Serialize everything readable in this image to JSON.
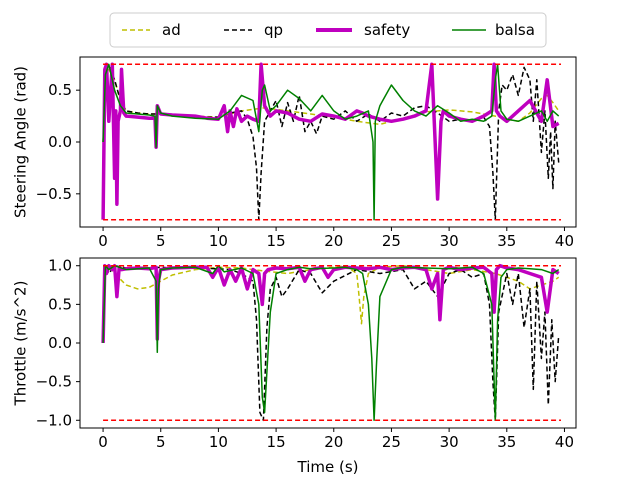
{
  "legend": {
    "placement": "top-center",
    "entries": [
      {
        "label": "ad",
        "color": "#bfbf00",
        "style": "dashed"
      },
      {
        "label": "qp",
        "color": "#000000",
        "style": "dashed"
      },
      {
        "label": "safety",
        "color": "#bf00bf",
        "style": "solid-thick"
      },
      {
        "label": "balsa",
        "color": "#008000",
        "style": "solid"
      }
    ]
  },
  "chart_data": [
    {
      "type": "line",
      "title": "",
      "xlabel": "",
      "ylabel": "Steering Angle (rad)",
      "xlim": [
        -2.0,
        41.0
      ],
      "ylim": [
        -0.82,
        0.82
      ],
      "xticks": [
        0,
        5,
        10,
        15,
        20,
        25,
        30,
        35,
        40
      ],
      "yticks": [
        -0.5,
        0.0,
        0.5
      ],
      "grid": false,
      "bounds": {
        "upper": 0.75,
        "lower": -0.75,
        "color": "#ff0000",
        "style": "dashed"
      },
      "series": [
        {
          "name": "ad",
          "color": "#bfbf00",
          "style": "dashed",
          "x": [
            0,
            0.3,
            0.5,
            1,
            1.5,
            2,
            3,
            4,
            5,
            6,
            8,
            10,
            12,
            14,
            16,
            18,
            20,
            22,
            24,
            26,
            28,
            30,
            32,
            34,
            35,
            36,
            37,
            38,
            38.5,
            39,
            39.5
          ],
          "y": [
            0,
            0.6,
            0.7,
            0.6,
            0.4,
            0.3,
            0.28,
            0.27,
            0.27,
            0.26,
            0.25,
            0.24,
            0.3,
            0.33,
            0.3,
            0.27,
            0.24,
            0.2,
            0.17,
            0.23,
            0.29,
            0.31,
            0.29,
            0.25,
            0.22,
            0.2,
            0.28,
            0.42,
            0.45,
            0.38,
            0.3
          ]
        },
        {
          "name": "qp",
          "color": "#000000",
          "style": "dashed",
          "x": [
            0,
            0.2,
            0.5,
            1,
            1.5,
            2,
            3,
            4,
            5,
            7,
            9,
            10,
            11,
            12,
            12.5,
            13,
            13.3,
            13.5,
            13.7,
            14,
            14.5,
            15,
            15.5,
            16,
            16.5,
            17,
            17.5,
            18,
            18.5,
            19,
            20,
            21,
            22,
            23,
            24,
            25,
            26,
            27,
            28,
            29,
            30,
            31,
            32,
            33,
            33.5,
            33.8,
            34,
            34.3,
            34.6,
            35,
            35.5,
            36,
            36.5,
            37,
            37.3,
            37.6,
            38,
            38.3,
            38.6,
            38.8,
            39,
            39.2,
            39.5
          ],
          "y": [
            0,
            0.7,
            0.74,
            0.6,
            0.4,
            0.3,
            0.28,
            0.27,
            0.27,
            0.25,
            0.24,
            0.24,
            0.28,
            0.3,
            0.22,
            0.05,
            -0.25,
            -0.75,
            -0.3,
            0.2,
            0.3,
            0.4,
            0.15,
            0.38,
            0.2,
            0.45,
            0.1,
            0.2,
            0.08,
            0.25,
            0.22,
            0.3,
            0.2,
            0.27,
            0.2,
            0.28,
            0.25,
            0.33,
            0.35,
            0.28,
            0.2,
            0.22,
            0.2,
            0.24,
            0.15,
            -0.3,
            -0.75,
            0.3,
            0.55,
            0.5,
            0.65,
            0.45,
            0.72,
            0.6,
            0.2,
            0.6,
            -0.1,
            0.3,
            -0.35,
            0.1,
            -0.45,
            0.2,
            -0.2
          ]
        },
        {
          "name": "safety",
          "color": "#bf00bf",
          "style": "solid-thick",
          "x": [
            0,
            0.15,
            0.3,
            0.5,
            0.8,
            1.0,
            1.1,
            1.2,
            1.3,
            1.5,
            1.6,
            1.8,
            2,
            3,
            4,
            4.5,
            4.6,
            4.7,
            5,
            6,
            8,
            9,
            10,
            10.5,
            10.8,
            11,
            11.3,
            11.6,
            12,
            12.5,
            13,
            13.5,
            13.7,
            14,
            14.5,
            15,
            16,
            17,
            18,
            19,
            20,
            21,
            22,
            22.5,
            23,
            24,
            25,
            26,
            27,
            28,
            28.5,
            29,
            29.3,
            29.5,
            30,
            31,
            32,
            33,
            33.7,
            33.9,
            34.1,
            34.4,
            35,
            36,
            37,
            38,
            38.5,
            39,
            39.5
          ],
          "y": [
            -0.75,
            0.7,
            0.75,
            0.2,
            0.75,
            -0.35,
            0.3,
            -0.6,
            0.2,
            0.3,
            0.7,
            0.28,
            0.25,
            0.24,
            0.23,
            0.23,
            -0.05,
            0.35,
            0.27,
            0.26,
            0.25,
            0.23,
            0.22,
            0.35,
            0.1,
            0.3,
            0.15,
            0.32,
            0.2,
            0.25,
            0.22,
            0.2,
            0.75,
            0.35,
            0.25,
            0.3,
            0.28,
            0.22,
            0.2,
            0.27,
            0.25,
            0.22,
            0.3,
            0.28,
            0.25,
            0.22,
            0.2,
            0.22,
            0.25,
            0.3,
            0.75,
            -0.55,
            0.2,
            0.3,
            0.25,
            0.22,
            0.2,
            0.25,
            0.3,
            0.75,
            0.3,
            0.25,
            0.2,
            0.3,
            0.4,
            0.2,
            0.6,
            0.15,
            0.18
          ]
        },
        {
          "name": "balsa",
          "color": "#008000",
          "style": "solid",
          "x": [
            0,
            0.2,
            0.5,
            1,
            1.5,
            2,
            3,
            4,
            4.5,
            4.6,
            4.7,
            5,
            6,
            8,
            10,
            11,
            12,
            13,
            13.5,
            13.8,
            14,
            14.5,
            15,
            16,
            17,
            18,
            19,
            20,
            21,
            22,
            23,
            23.4,
            23.5,
            23.6,
            24,
            25,
            26,
            27,
            28,
            29,
            30,
            31,
            32,
            33,
            33.7,
            34,
            34.2,
            34.5,
            35,
            36,
            37,
            38,
            38.5,
            39,
            39.5
          ],
          "y": [
            0,
            0.65,
            0.75,
            0.5,
            0.35,
            0.28,
            0.27,
            0.26,
            0.25,
            -0.05,
            0.35,
            0.28,
            0.25,
            0.23,
            0.22,
            0.3,
            0.45,
            0.4,
            0.1,
            0.5,
            0.55,
            0.3,
            0.35,
            0.5,
            0.42,
            0.3,
            0.45,
            0.3,
            0.22,
            0.25,
            0.3,
            0.0,
            -0.75,
            0.2,
            0.35,
            0.55,
            0.4,
            0.3,
            0.25,
            0.35,
            0.28,
            0.2,
            0.22,
            0.2,
            0.25,
            0.6,
            0.75,
            0.3,
            0.22,
            0.2,
            0.25,
            0.3,
            0.2,
            0.3,
            0.25
          ]
        }
      ]
    },
    {
      "type": "line",
      "title": "",
      "xlabel": "Time (s)",
      "ylabel": "Throttle (m/s^2)",
      "xlim": [
        -2.0,
        41.0
      ],
      "ylim": [
        -1.1,
        1.1
      ],
      "xticks": [
        0,
        5,
        10,
        15,
        20,
        25,
        30,
        35,
        40
      ],
      "yticks": [
        -1.0,
        -0.5,
        0.0,
        0.5,
        1.0
      ],
      "grid": false,
      "bounds": {
        "upper": 1.0,
        "lower": -1.0,
        "color": "#ff0000",
        "style": "dashed"
      },
      "series": [
        {
          "name": "ad",
          "color": "#bfbf00",
          "style": "dashed",
          "x": [
            0,
            0.2,
            0.5,
            1,
            2,
            3,
            4,
            5,
            6,
            8,
            10,
            12,
            14,
            16,
            18,
            20,
            21,
            22,
            22.2,
            22.4,
            22.6,
            23,
            24,
            26,
            28,
            30,
            32,
            34,
            36,
            37,
            38,
            39,
            39.5
          ],
          "y": [
            0,
            0.9,
            1.0,
            0.9,
            0.75,
            0.7,
            0.72,
            0.8,
            0.88,
            0.95,
            0.98,
            0.97,
            0.93,
            0.9,
            0.95,
            0.98,
            1.0,
            0.9,
            0.6,
            0.25,
            0.6,
            0.9,
            0.98,
            1.0,
            0.95,
            0.9,
            0.95,
            0.9,
            0.8,
            0.7,
            0.75,
            0.8,
            0.85
          ]
        },
        {
          "name": "qp",
          "color": "#000000",
          "style": "dashed",
          "x": [
            0,
            0.2,
            0.5,
            1,
            2,
            3,
            4,
            5,
            6,
            8,
            10,
            11,
            12,
            13,
            13.3,
            13.6,
            13.9,
            14.2,
            14.5,
            15,
            15.5,
            16,
            17,
            18,
            19,
            20,
            22,
            24,
            26,
            27,
            28,
            29,
            30,
            31,
            32,
            33,
            33.5,
            33.8,
            34,
            34.3,
            35,
            35.5,
            36,
            36.5,
            37,
            37.3,
            37.6,
            38,
            38.3,
            38.6,
            38.9,
            39.2,
            39.5
          ],
          "y": [
            0,
            1.0,
            0.9,
            1.0,
            0.97,
            0.96,
            0.97,
            0.98,
            0.97,
            0.97,
            0.96,
            0.95,
            0.9,
            0.8,
            0.3,
            -0.9,
            -1.0,
            0.2,
            0.7,
            0.85,
            0.6,
            0.7,
            0.95,
            0.9,
            0.65,
            0.8,
            0.95,
            0.9,
            0.95,
            0.7,
            0.8,
            0.6,
            0.9,
            0.95,
            0.85,
            0.9,
            0.5,
            -0.5,
            -1.0,
            0.4,
            0.9,
            0.5,
            0.9,
            0.2,
            0.7,
            -0.6,
            0.8,
            -0.2,
            0.4,
            -0.8,
            0.3,
            -0.5,
            0.1
          ]
        },
        {
          "name": "safety",
          "color": "#bf00bf",
          "style": "solid-thick",
          "x": [
            0,
            0.15,
            0.3,
            0.5,
            0.8,
            1,
            1.2,
            1.4,
            1.6,
            2,
            3,
            4,
            4.6,
            4.7,
            4.8,
            5,
            6,
            8,
            9,
            9.5,
            10,
            10.5,
            11,
            11.5,
            12,
            12.5,
            13,
            13.5,
            13.8,
            14,
            14.3,
            15,
            16,
            17,
            17.5,
            18,
            19,
            19.5,
            20,
            21,
            22,
            23,
            24,
            25,
            26,
            27,
            28,
            28.5,
            29,
            29.2,
            29.5,
            30,
            31,
            32,
            33,
            33.7,
            33.9,
            34.1,
            34.4,
            35,
            36,
            37,
            38,
            38.5,
            39,
            39.5
          ],
          "y": [
            0,
            1.0,
            0.9,
            1.0,
            0.95,
            1.0,
            0.6,
            0.98,
            0.95,
            0.96,
            0.97,
            0.96,
            0.98,
            0.05,
            0.8,
            0.95,
            0.97,
            0.98,
            0.98,
            0.85,
            0.98,
            0.75,
            0.95,
            0.8,
            0.97,
            0.7,
            0.95,
            0.9,
            0.5,
            0.9,
            0.95,
            0.97,
            0.96,
            0.98,
            0.8,
            0.95,
            0.98,
            0.85,
            0.95,
            0.98,
            0.97,
            0.96,
            0.98,
            0.95,
            0.97,
            0.98,
            0.95,
            0.7,
            0.9,
            0.3,
            0.95,
            0.98,
            0.95,
            0.97,
            0.98,
            0.9,
            0.4,
            0.95,
            1.0,
            0.97,
            0.95,
            0.9,
            0.85,
            0.4,
            0.95,
            0.9
          ]
        },
        {
          "name": "balsa",
          "color": "#008000",
          "style": "solid",
          "x": [
            0,
            0.2,
            0.5,
            1,
            2,
            3,
            4,
            4.6,
            4.7,
            4.8,
            5,
            6,
            8,
            9.5,
            10,
            10.5,
            12,
            13,
            13.5,
            13.8,
            14,
            14.5,
            15,
            16,
            17,
            18,
            20,
            21,
            22,
            22.5,
            23,
            23.3,
            23.5,
            23.7,
            24,
            25,
            26,
            28,
            30,
            32,
            33,
            33.7,
            34,
            34.2,
            34.5,
            35,
            36,
            37,
            38,
            39,
            39.5
          ],
          "y": [
            0,
            1.0,
            0.95,
            1.0,
            0.95,
            0.96,
            0.97,
            0.8,
            -0.12,
            0.7,
            0.95,
            0.97,
            0.98,
            0.9,
            1.0,
            0.92,
            0.97,
            0.9,
            0.5,
            -0.7,
            -0.9,
            0.4,
            0.9,
            0.95,
            0.98,
            0.96,
            0.97,
            0.98,
            0.95,
            0.9,
            0.5,
            -0.2,
            -1.0,
            -0.3,
            0.6,
            0.95,
            0.98,
            0.97,
            0.96,
            0.98,
            0.9,
            0.5,
            -1.0,
            0.3,
            0.85,
            0.95,
            0.97,
            0.96,
            0.95,
            0.9,
            0.95
          ]
        }
      ]
    }
  ]
}
